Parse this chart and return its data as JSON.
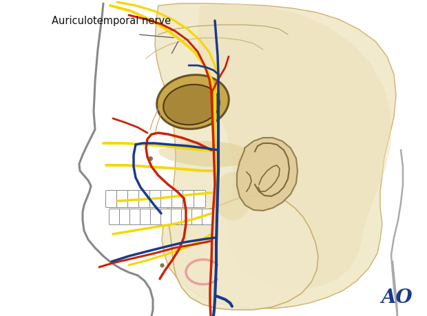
{
  "bg_color": "#ffffff",
  "skull_fill": "#f0e8c8",
  "skull_stroke": "#c8aa60",
  "nerve_color": "#f5d800",
  "artery_color": "#cc2200",
  "vein_color": "#1a3a8a",
  "ear_fill": "#e8d5a0",
  "ear_stroke": "#aaa070",
  "profile_color": "#888888",
  "neck_color": "#aaaaaa",
  "annotation_color": "#222222",
  "ao_color": "#1a3a8a",
  "label_text": "Auriculotemporal nerve",
  "ao_text": "AO",
  "lw_nerve": 2.8,
  "lw_vessel": 2.5,
  "lw_skull": 1.2,
  "lw_profile": 2.2
}
